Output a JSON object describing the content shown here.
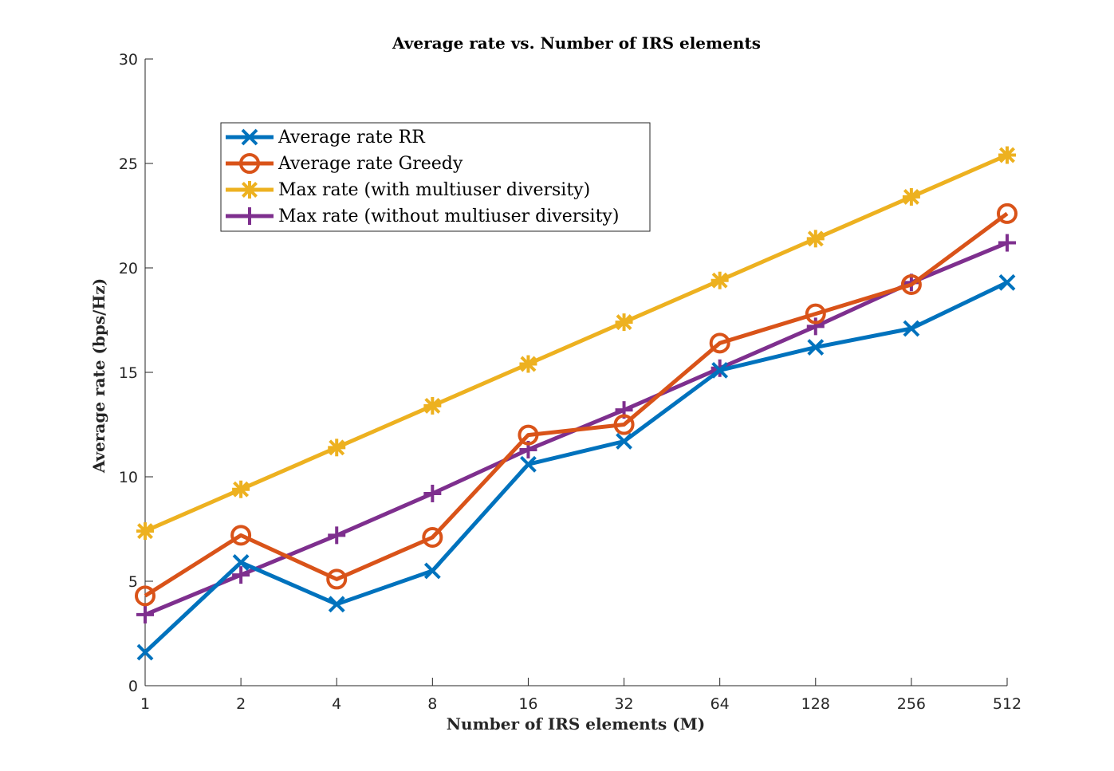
{
  "chart_data": {
    "type": "line",
    "title": "Average rate vs. Number of IRS elements",
    "xlabel": "Number of IRS elements (M)",
    "ylabel": "Average rate (bps/Hz)",
    "x_scale": "log2",
    "x": [
      1,
      2,
      4,
      8,
      16,
      32,
      64,
      128,
      256,
      512
    ],
    "x_tick_labels": [
      "1",
      "2",
      "4",
      "8",
      "16",
      "32",
      "64",
      "128",
      "256",
      "512"
    ],
    "ylim": [
      0,
      30
    ],
    "y_ticks": [
      0,
      5,
      10,
      15,
      20,
      25,
      30
    ],
    "y_tick_labels": [
      "0",
      "5",
      "10",
      "15",
      "20",
      "25",
      "30"
    ],
    "grid": false,
    "legend_position": "top-left",
    "series": [
      {
        "name": "Average rate RR",
        "color": "#0072BD",
        "marker": "x",
        "values": [
          1.6,
          5.9,
          3.9,
          5.5,
          10.6,
          11.7,
          15.1,
          16.2,
          17.1,
          19.3
        ]
      },
      {
        "name": "Average rate Greedy",
        "color": "#D95319",
        "marker": "circle",
        "values": [
          4.3,
          7.2,
          5.1,
          7.1,
          12.0,
          12.5,
          16.4,
          17.8,
          19.2,
          22.6
        ]
      },
      {
        "name": "Max rate (with multiuser diversity)",
        "color": "#EDB120",
        "marker": "asterisk",
        "values": [
          7.4,
          9.4,
          11.4,
          13.4,
          15.4,
          17.4,
          19.4,
          21.4,
          23.4,
          25.4
        ]
      },
      {
        "name": "Max rate (without multiuser diversity)",
        "color": "#7E2F8E",
        "marker": "plus",
        "values": [
          3.4,
          5.3,
          7.2,
          9.2,
          11.3,
          13.2,
          15.2,
          17.2,
          19.3,
          21.2
        ]
      }
    ]
  }
}
